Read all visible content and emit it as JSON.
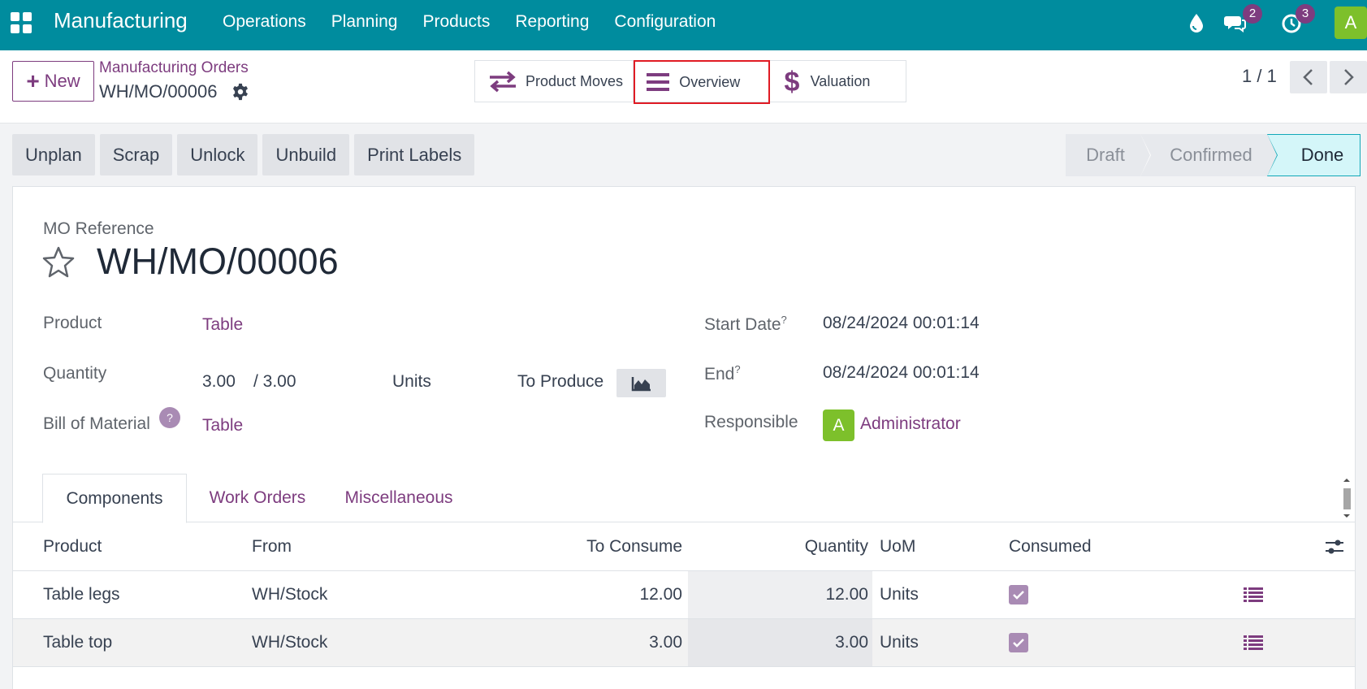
{
  "navbar": {
    "app_name": "Manufacturing",
    "menu": [
      "Operations",
      "Planning",
      "Products",
      "Reporting",
      "Configuration"
    ],
    "messages_count": "2",
    "activities_count": "3",
    "user_initial": "A"
  },
  "control_panel": {
    "new_label": "New",
    "breadcrumb_parent": "Manufacturing Orders",
    "breadcrumb_current": "WH/MO/00006",
    "smart_buttons": {
      "product_moves": "Product Moves",
      "overview": "Overview",
      "valuation": "Valuation"
    },
    "pager": "1 / 1"
  },
  "actions": [
    "Unplan",
    "Scrap",
    "Unlock",
    "Unbuild",
    "Print Labels"
  ],
  "status": {
    "stages": [
      "Draft",
      "Confirmed",
      "Done"
    ],
    "current": "Done"
  },
  "form": {
    "reference_label": "MO Reference",
    "reference": "WH/MO/00006",
    "product_label": "Product",
    "product": "Table",
    "quantity_label": "Quantity",
    "quantity": "3.00",
    "quantity_total": "/ 3.00",
    "uom": "Units",
    "to_produce_label": "To Produce",
    "bom_label": "Bill of Material",
    "bom_help": "?",
    "bom": "Table",
    "start_label": "Start Date",
    "start_help": "?",
    "start": "08/24/2024 00:01:14",
    "end_label": "End",
    "end_help": "?",
    "end": "08/24/2024 00:01:14",
    "responsible_label": "Responsible",
    "responsible_initial": "A",
    "responsible": "Administrator"
  },
  "tabs": [
    "Components",
    "Work Orders",
    "Miscellaneous"
  ],
  "components": {
    "columns": [
      "Product",
      "From",
      "To Consume",
      "Quantity",
      "UoM",
      "Consumed"
    ],
    "rows": [
      {
        "product": "Table legs",
        "from": "WH/Stock",
        "to_consume": "12.00",
        "quantity": "12.00",
        "uom": "Units",
        "consumed": true
      },
      {
        "product": "Table top",
        "from": "WH/Stock",
        "to_consume": "3.00",
        "quantity": "3.00",
        "uom": "Units",
        "consumed": true
      }
    ]
  },
  "colors": {
    "navbar": "#008c9e",
    "accent": "#7d3c7f",
    "highlight_border": "#e01b24",
    "done_stage": "#d4f6f9"
  }
}
